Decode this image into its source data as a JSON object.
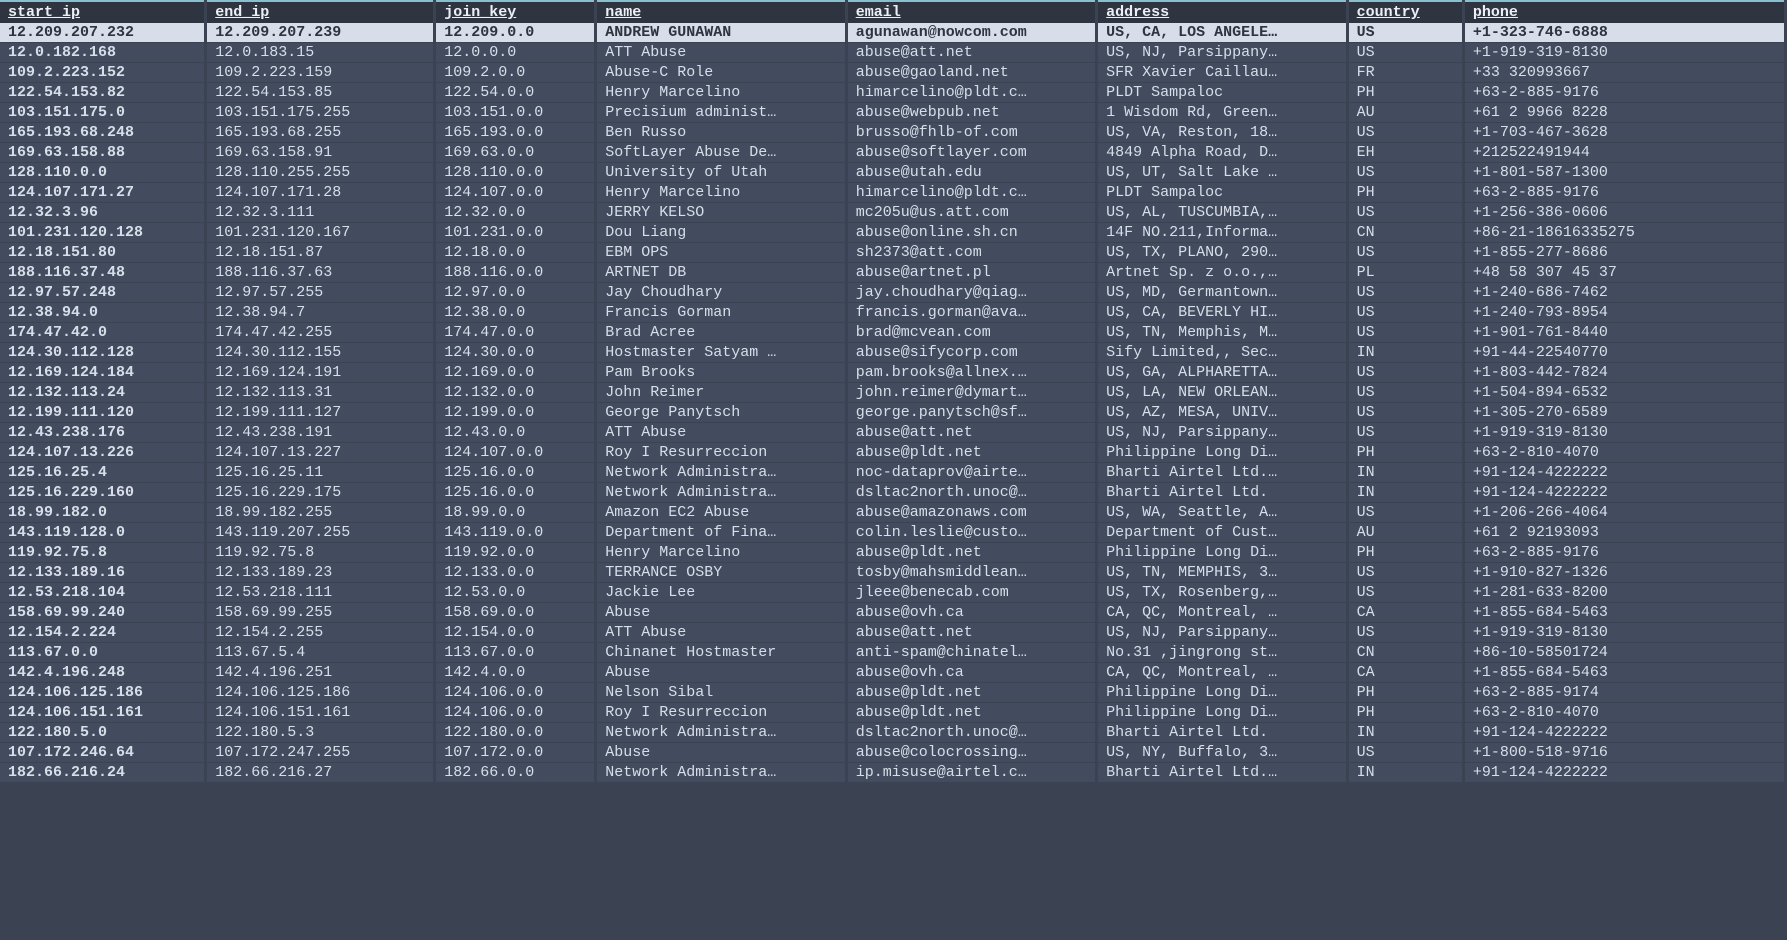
{
  "columns": [
    {
      "key": "start_ip",
      "label": "start_ip",
      "class": "col-start_ip"
    },
    {
      "key": "end_ip",
      "label": "end_ip",
      "class": "col-end_ip"
    },
    {
      "key": "join_key",
      "label": "join_key",
      "class": "col-join_key"
    },
    {
      "key": "name",
      "label": "name",
      "class": "col-name"
    },
    {
      "key": "email",
      "label": "email",
      "class": "col-email"
    },
    {
      "key": "address",
      "label": "address",
      "class": "col-address"
    },
    {
      "key": "country",
      "label": "country",
      "class": "col-country"
    },
    {
      "key": "phone",
      "label": "phone",
      "class": "col-phone"
    }
  ],
  "selected_index": 0,
  "rows": [
    {
      "start_ip": "12.209.207.232",
      "end_ip": "12.209.207.239",
      "join_key": "12.209.0.0",
      "name": "ANDREW GUNAWAN",
      "email": "agunawan@nowcom.com",
      "address": "US, CA, LOS ANGELE…",
      "country": "US",
      "phone": "+1-323-746-6888"
    },
    {
      "start_ip": "12.0.182.168",
      "end_ip": "12.0.183.15",
      "join_key": "12.0.0.0",
      "name": "ATT Abuse",
      "email": "abuse@att.net",
      "address": "US, NJ, Parsippany…",
      "country": "US",
      "phone": "+1-919-319-8130"
    },
    {
      "start_ip": "109.2.223.152",
      "end_ip": "109.2.223.159",
      "join_key": "109.2.0.0",
      "name": "Abuse-C Role",
      "email": "abuse@gaoland.net",
      "address": "SFR Xavier Caillau…",
      "country": "FR",
      "phone": "+33 320993667"
    },
    {
      "start_ip": "122.54.153.82",
      "end_ip": "122.54.153.85",
      "join_key": "122.54.0.0",
      "name": "Henry Marcelino",
      "email": "himarcelino@pldt.c…",
      "address": "PLDT Sampaloc",
      "country": "PH",
      "phone": "+63-2-885-9176"
    },
    {
      "start_ip": "103.151.175.0",
      "end_ip": "103.151.175.255",
      "join_key": "103.151.0.0",
      "name": "Precisium administ…",
      "email": "abuse@webpub.net",
      "address": "1 Wisdom Rd, Green…",
      "country": "AU",
      "phone": "+61 2 9966 8228"
    },
    {
      "start_ip": "165.193.68.248",
      "end_ip": "165.193.68.255",
      "join_key": "165.193.0.0",
      "name": "Ben Russo",
      "email": "brusso@fhlb-of.com",
      "address": "US, VA, Reston, 18…",
      "country": "US",
      "phone": "+1-703-467-3628"
    },
    {
      "start_ip": "169.63.158.88",
      "end_ip": "169.63.158.91",
      "join_key": "169.63.0.0",
      "name": "SoftLayer Abuse De…",
      "email": "abuse@softlayer.com",
      "address": "4849 Alpha Road, D…",
      "country": "EH",
      "phone": "+212522491944"
    },
    {
      "start_ip": "128.110.0.0",
      "end_ip": "128.110.255.255",
      "join_key": "128.110.0.0",
      "name": "University of Utah",
      "email": "abuse@utah.edu",
      "address": "US, UT, Salt Lake …",
      "country": "US",
      "phone": "+1-801-587-1300"
    },
    {
      "start_ip": "124.107.171.27",
      "end_ip": "124.107.171.28",
      "join_key": "124.107.0.0",
      "name": "Henry Marcelino",
      "email": "himarcelino@pldt.c…",
      "address": "PLDT Sampaloc",
      "country": "PH",
      "phone": "+63-2-885-9176"
    },
    {
      "start_ip": "12.32.3.96",
      "end_ip": "12.32.3.111",
      "join_key": "12.32.0.0",
      "name": "JERRY KELSO",
      "email": "mc205u@us.att.com",
      "address": "US, AL, TUSCUMBIA,…",
      "country": "US",
      "phone": "+1-256-386-0606"
    },
    {
      "start_ip": "101.231.120.128",
      "end_ip": "101.231.120.167",
      "join_key": "101.231.0.0",
      "name": "Dou Liang",
      "email": "abuse@online.sh.cn",
      "address": "14F NO.211,Informa…",
      "country": "CN",
      "phone": "+86-21-18616335275"
    },
    {
      "start_ip": "12.18.151.80",
      "end_ip": "12.18.151.87",
      "join_key": "12.18.0.0",
      "name": "EBM OPS",
      "email": "sh2373@att.com",
      "address": "US, TX, PLANO, 290…",
      "country": "US",
      "phone": "+1-855-277-8686"
    },
    {
      "start_ip": "188.116.37.48",
      "end_ip": "188.116.37.63",
      "join_key": "188.116.0.0",
      "name": "ARTNET DB",
      "email": "abuse@artnet.pl",
      "address": "Artnet Sp. z o.o.,…",
      "country": "PL",
      "phone": "+48 58 307 45 37"
    },
    {
      "start_ip": "12.97.57.248",
      "end_ip": "12.97.57.255",
      "join_key": "12.97.0.0",
      "name": "Jay Choudhary",
      "email": "jay.choudhary@qiag…",
      "address": "US, MD, Germantown…",
      "country": "US",
      "phone": "+1-240-686-7462"
    },
    {
      "start_ip": "12.38.94.0",
      "end_ip": "12.38.94.7",
      "join_key": "12.38.0.0",
      "name": "Francis Gorman",
      "email": "francis.gorman@ava…",
      "address": "US, CA, BEVERLY HI…",
      "country": "US",
      "phone": "+1-240-793-8954"
    },
    {
      "start_ip": "174.47.42.0",
      "end_ip": "174.47.42.255",
      "join_key": "174.47.0.0",
      "name": "Brad Acree",
      "email": "brad@mcvean.com",
      "address": "US, TN, Memphis, M…",
      "country": "US",
      "phone": "+1-901-761-8440"
    },
    {
      "start_ip": "124.30.112.128",
      "end_ip": "124.30.112.155",
      "join_key": "124.30.0.0",
      "name": "Hostmaster Satyam …",
      "email": "abuse@sifycorp.com",
      "address": "Sify Limited,, Sec…",
      "country": "IN",
      "phone": "+91-44-22540770"
    },
    {
      "start_ip": "12.169.124.184",
      "end_ip": "12.169.124.191",
      "join_key": "12.169.0.0",
      "name": "Pam Brooks",
      "email": "pam.brooks@allnex.…",
      "address": "US, GA, ALPHARETTA…",
      "country": "US",
      "phone": "+1-803-442-7824"
    },
    {
      "start_ip": "12.132.113.24",
      "end_ip": "12.132.113.31",
      "join_key": "12.132.0.0",
      "name": "John Reimer",
      "email": "john.reimer@dymart…",
      "address": "US, LA, NEW ORLEAN…",
      "country": "US",
      "phone": "+1-504-894-6532"
    },
    {
      "start_ip": "12.199.111.120",
      "end_ip": "12.199.111.127",
      "join_key": "12.199.0.0",
      "name": "George Panytsch",
      "email": "george.panytsch@sf…",
      "address": "US, AZ, MESA, UNIV…",
      "country": "US",
      "phone": "+1-305-270-6589"
    },
    {
      "start_ip": "12.43.238.176",
      "end_ip": "12.43.238.191",
      "join_key": "12.43.0.0",
      "name": "ATT Abuse",
      "email": "abuse@att.net",
      "address": "US, NJ, Parsippany…",
      "country": "US",
      "phone": "+1-919-319-8130"
    },
    {
      "start_ip": "124.107.13.226",
      "end_ip": "124.107.13.227",
      "join_key": "124.107.0.0",
      "name": "Roy I Resurreccion",
      "email": "abuse@pldt.net",
      "address": "Philippine Long Di…",
      "country": "PH",
      "phone": "+63-2-810-4070"
    },
    {
      "start_ip": "125.16.25.4",
      "end_ip": "125.16.25.11",
      "join_key": "125.16.0.0",
      "name": "Network Administra…",
      "email": "noc-dataprov@airte…",
      "address": "Bharti Airtel Ltd.…",
      "country": "IN",
      "phone": "+91-124-4222222"
    },
    {
      "start_ip": "125.16.229.160",
      "end_ip": "125.16.229.175",
      "join_key": "125.16.0.0",
      "name": "Network Administra…",
      "email": "dsltac2north.unoc@…",
      "address": "Bharti Airtel Ltd.",
      "country": "IN",
      "phone": "+91-124-4222222"
    },
    {
      "start_ip": "18.99.182.0",
      "end_ip": "18.99.182.255",
      "join_key": "18.99.0.0",
      "name": "Amazon EC2 Abuse",
      "email": "abuse@amazonaws.com",
      "address": "US, WA, Seattle, A…",
      "country": "US",
      "phone": "+1-206-266-4064"
    },
    {
      "start_ip": "143.119.128.0",
      "end_ip": "143.119.207.255",
      "join_key": "143.119.0.0",
      "name": "Department of Fina…",
      "email": "colin.leslie@custo…",
      "address": "Department of Cust…",
      "country": "AU",
      "phone": "+61 2 92193093"
    },
    {
      "start_ip": "119.92.75.8",
      "end_ip": "119.92.75.8",
      "join_key": "119.92.0.0",
      "name": "Henry Marcelino",
      "email": "abuse@pldt.net",
      "address": "Philippine Long Di…",
      "country": "PH",
      "phone": "+63-2-885-9176"
    },
    {
      "start_ip": "12.133.189.16",
      "end_ip": "12.133.189.23",
      "join_key": "12.133.0.0",
      "name": "TERRANCE OSBY",
      "email": "tosby@mahsmiddlean…",
      "address": "US, TN, MEMPHIS, 3…",
      "country": "US",
      "phone": "+1-910-827-1326"
    },
    {
      "start_ip": "12.53.218.104",
      "end_ip": "12.53.218.111",
      "join_key": "12.53.0.0",
      "name": "Jackie Lee",
      "email": "jleee@benecab.com",
      "address": "US, TX, Rosenberg,…",
      "country": "US",
      "phone": "+1-281-633-8200"
    },
    {
      "start_ip": "158.69.99.240",
      "end_ip": "158.69.99.255",
      "join_key": "158.69.0.0",
      "name": "Abuse",
      "email": "abuse@ovh.ca",
      "address": "CA, QC, Montreal, …",
      "country": "CA",
      "phone": "+1-855-684-5463"
    },
    {
      "start_ip": "12.154.2.224",
      "end_ip": "12.154.2.255",
      "join_key": "12.154.0.0",
      "name": "ATT Abuse",
      "email": "abuse@att.net",
      "address": "US, NJ, Parsippany…",
      "country": "US",
      "phone": "+1-919-319-8130"
    },
    {
      "start_ip": "113.67.0.0",
      "end_ip": "113.67.5.4",
      "join_key": "113.67.0.0",
      "name": "Chinanet Hostmaster",
      "email": "anti-spam@chinatel…",
      "address": "No.31 ,jingrong st…",
      "country": "CN",
      "phone": "+86-10-58501724"
    },
    {
      "start_ip": "142.4.196.248",
      "end_ip": "142.4.196.251",
      "join_key": "142.4.0.0",
      "name": "Abuse",
      "email": "abuse@ovh.ca",
      "address": "CA, QC, Montreal, …",
      "country": "CA",
      "phone": "+1-855-684-5463"
    },
    {
      "start_ip": "124.106.125.186",
      "end_ip": "124.106.125.186",
      "join_key": "124.106.0.0",
      "name": "Nelson Sibal",
      "email": "abuse@pldt.net",
      "address": "Philippine Long Di…",
      "country": "PH",
      "phone": "+63-2-885-9174"
    },
    {
      "start_ip": "124.106.151.161",
      "end_ip": "124.106.151.161",
      "join_key": "124.106.0.0",
      "name": "Roy I Resurreccion",
      "email": "abuse@pldt.net",
      "address": "Philippine Long Di…",
      "country": "PH",
      "phone": "+63-2-810-4070"
    },
    {
      "start_ip": "122.180.5.0",
      "end_ip": "122.180.5.3",
      "join_key": "122.180.0.0",
      "name": "Network Administra…",
      "email": "dsltac2north.unoc@…",
      "address": "Bharti Airtel Ltd.",
      "country": "IN",
      "phone": "+91-124-4222222"
    },
    {
      "start_ip": "107.172.246.64",
      "end_ip": "107.172.247.255",
      "join_key": "107.172.0.0",
      "name": "Abuse",
      "email": "abuse@colocrossing…",
      "address": "US, NY, Buffalo, 3…",
      "country": "US",
      "phone": "+1-800-518-9716"
    },
    {
      "start_ip": "182.66.216.24",
      "end_ip": "182.66.216.27",
      "join_key": "182.66.0.0",
      "name": "Network Administra…",
      "email": "ip.misuse@airtel.c…",
      "address": "Bharti Airtel Ltd.…",
      "country": "IN",
      "phone": "+91-124-4222222"
    }
  ]
}
